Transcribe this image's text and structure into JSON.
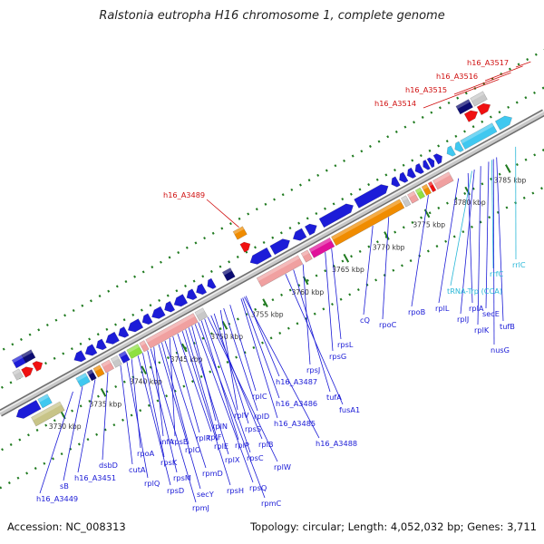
{
  "title": "Ralstonia eutropha H16 chromosome 1, complete genome",
  "footer": {
    "accession": "Accession: NC_008313",
    "topology": "Topology: circular; Length: 4,052,032 bp; Genes: 3,711"
  },
  "colors": {
    "backbone": "#9a9a9a",
    "tick": "#1f7a1f",
    "label_protein": "#1a1ad6",
    "label_rna": "#2ab8d8",
    "label_hypothetical": "#d01010",
    "gene_blue": "#1c1cd8",
    "gene_navy": "#0c0c72",
    "gene_pink": "#f0a0a0",
    "gene_orange": "#f08c00",
    "gene_magenta": "#e0109a",
    "gene_cyan": "#40c8f0",
    "gene_red": "#f01010",
    "gene_green": "#8ee040",
    "gene_olive": "#c8c488",
    "gene_gray": "#c8c8c8"
  },
  "kbp_ticks": [
    "3730 kbp",
    "3735 kbp",
    "3740 kbp",
    "3745 kbp",
    "3750 kbp",
    "3755 kbp",
    "3760 kbp",
    "3765 kbp",
    "3770 kbp",
    "3775 kbp",
    "3780 kbp",
    "3785 kbp"
  ],
  "gene_labels": [
    {
      "text": "h16_A3517",
      "kind": "hypothetical"
    },
    {
      "text": "h16_A3516",
      "kind": "hypothetical"
    },
    {
      "text": "h16_A3515",
      "kind": "hypothetical"
    },
    {
      "text": "h16_A3514",
      "kind": "hypothetical"
    },
    {
      "text": "h16_A3489",
      "kind": "hypothetical"
    },
    {
      "text": "rrlC",
      "kind": "rna"
    },
    {
      "text": "rrfC",
      "kind": "rna"
    },
    {
      "text": "tRNA-Trp (CCA)",
      "kind": "rna"
    },
    {
      "text": "rplA",
      "kind": "protein"
    },
    {
      "text": "rplL",
      "kind": "protein"
    },
    {
      "text": "rplJ",
      "kind": "protein"
    },
    {
      "text": "rplK",
      "kind": "protein"
    },
    {
      "text": "secE",
      "kind": "protein"
    },
    {
      "text": "tufB",
      "kind": "protein"
    },
    {
      "text": "nusG",
      "kind": "protein"
    },
    {
      "text": "rpoB",
      "kind": "protein"
    },
    {
      "text": "rpoC",
      "kind": "protein"
    },
    {
      "text": "cQ",
      "kind": "protein"
    },
    {
      "text": "rpsL",
      "kind": "protein"
    },
    {
      "text": "rpsG",
      "kind": "protein"
    },
    {
      "text": "rpsJ",
      "kind": "protein"
    },
    {
      "text": "tufA",
      "kind": "protein"
    },
    {
      "text": "fusA1",
      "kind": "protein"
    },
    {
      "text": "h16_A3487",
      "kind": "protein"
    },
    {
      "text": "h16_A3486",
      "kind": "protein"
    },
    {
      "text": "h16_A3485",
      "kind": "protein"
    },
    {
      "text": "h16_A3488",
      "kind": "protein"
    },
    {
      "text": "rplC",
      "kind": "protein"
    },
    {
      "text": "rplD",
      "kind": "protein"
    },
    {
      "text": "rplV",
      "kind": "protein"
    },
    {
      "text": "rpsS",
      "kind": "protein"
    },
    {
      "text": "rplB",
      "kind": "protein"
    },
    {
      "text": "rplW",
      "kind": "protein"
    },
    {
      "text": "rpsC",
      "kind": "protein"
    },
    {
      "text": "rplP",
      "kind": "protein"
    },
    {
      "text": "rpmC",
      "kind": "protein"
    },
    {
      "text": "rpsQ",
      "kind": "protein"
    },
    {
      "text": "rplN",
      "kind": "protein"
    },
    {
      "text": "rplX",
      "kind": "protein"
    },
    {
      "text": "rplE",
      "kind": "protein"
    },
    {
      "text": "rpsH",
      "kind": "protein"
    },
    {
      "text": "rplF",
      "kind": "protein"
    },
    {
      "text": "rplR",
      "kind": "protein"
    },
    {
      "text": "rpsE",
      "kind": "protein"
    },
    {
      "text": "rpmD",
      "kind": "protein"
    },
    {
      "text": "rplO",
      "kind": "protein"
    },
    {
      "text": "secY",
      "kind": "protein"
    },
    {
      "text": "infA",
      "kind": "protein"
    },
    {
      "text": "rpmJ",
      "kind": "protein"
    },
    {
      "text": "rpsM",
      "kind": "protein"
    },
    {
      "text": "rpsK",
      "kind": "protein"
    },
    {
      "text": "rpsD",
      "kind": "protein"
    },
    {
      "text": "rpoA",
      "kind": "protein"
    },
    {
      "text": "rplQ",
      "kind": "protein"
    },
    {
      "text": "cutA",
      "kind": "protein"
    },
    {
      "text": "dsbD",
      "kind": "protein"
    },
    {
      "text": "h16_A3451",
      "kind": "protein"
    },
    {
      "text": "sB",
      "kind": "protein"
    },
    {
      "text": "h16_A3449",
      "kind": "protein"
    }
  ]
}
